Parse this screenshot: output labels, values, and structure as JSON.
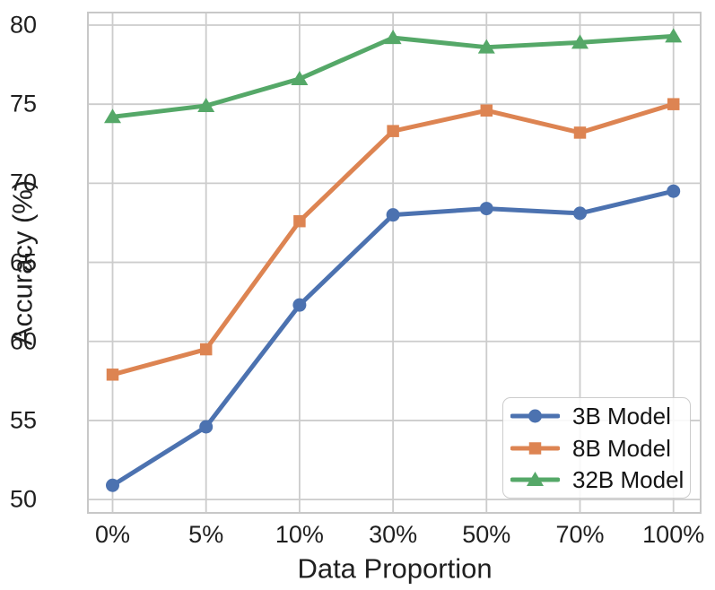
{
  "chart_data": {
    "type": "line",
    "title": "",
    "xlabel": "Data Proportion",
    "ylabel": "Accuracy (%)",
    "categories": [
      "0%",
      "5%",
      "10%",
      "30%",
      "50%",
      "70%",
      "100%"
    ],
    "y_ticks": [
      50,
      55,
      60,
      65,
      70,
      75,
      80
    ],
    "ylim": [
      49.1,
      80.85
    ],
    "grid": true,
    "legend_position": "lower right",
    "series": [
      {
        "name": "3B Model",
        "color": "#4C72B0",
        "marker": "circle",
        "values": [
          50.9,
          54.6,
          62.3,
          68.0,
          68.4,
          68.1,
          69.5
        ]
      },
      {
        "name": "8B Model",
        "color": "#DD8452",
        "marker": "square",
        "values": [
          57.9,
          59.5,
          67.6,
          73.3,
          74.6,
          73.2,
          75.0
        ]
      },
      {
        "name": "32B Model",
        "color": "#55A868",
        "marker": "triangle",
        "values": [
          74.2,
          74.9,
          76.6,
          79.2,
          78.6,
          78.9,
          79.3
        ]
      }
    ],
    "colors": {
      "grid": "#cccccc",
      "spine": "#c8c8c8",
      "text": "#1f1f1f"
    }
  }
}
